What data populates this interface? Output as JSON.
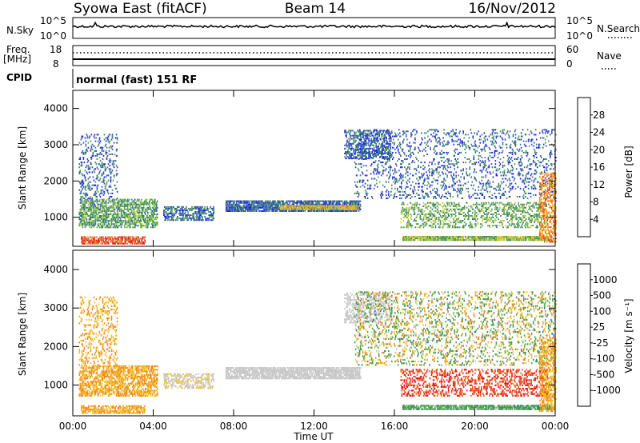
{
  "header": {
    "station": "Syowa East (fitACF)",
    "beam": "Beam 14",
    "date": "16/Nov/2012",
    "mode_text": "normal (fast) 151 RF"
  },
  "noise_panel": {
    "left_label": "N.Sky",
    "right_label": "N.Search",
    "left_ticks": [
      "10^5",
      "10^0"
    ],
    "right_ticks": [
      "10^5",
      "10^0"
    ]
  },
  "freq_panel": {
    "left_label": "Freq.",
    "left_unit": "[MHz]",
    "right_label": "Nave",
    "left_ticks": [
      "18",
      "8"
    ],
    "right_ticks": [
      "60",
      "0"
    ]
  },
  "cpid_label": "CPID",
  "colors": {
    "power": [
      "#1f1ff0",
      "#2a4fb5",
      "#3a7f70",
      "#4aa04a",
      "#a8c84a",
      "#f0c020",
      "#f08a20",
      "#e85a1a",
      "#e01a1a"
    ],
    "velocity": [
      "#e01a1a",
      "#f05a1a",
      "#f08a20",
      "#f0c020",
      "#c8c8c8",
      "#c8c8c8",
      "#4aa04a",
      "#2a7f70",
      "#2a4fb5",
      "#1f2fd0"
    ]
  },
  "chart_data": [
    {
      "type": "heatmap",
      "title": "",
      "ylabel": "Slant Range [km]",
      "xlabel": "",
      "ylim": [
        200,
        4500
      ],
      "xlim": [
        0,
        24
      ],
      "yticks": [
        "1000",
        "2000",
        "3000",
        "4000"
      ],
      "xticks": [
        "00:00",
        "04:00",
        "08:00",
        "12:00",
        "16:00",
        "20:00",
        "00:00"
      ],
      "colorbar_label": "Power [dB]",
      "colorbar_ticks": [
        "4",
        "8",
        "12",
        "16",
        "20",
        "24",
        "28"
      ],
      "colorbar_range": [
        0,
        30
      ],
      "regions": [
        {
          "t0": 0.3,
          "t1": 4.2,
          "r0": 700,
          "r1": 1500,
          "v": 11,
          "d": 0.55
        },
        {
          "t0": 0.4,
          "t1": 3.6,
          "r0": 250,
          "r1": 450,
          "v": 26,
          "d": 0.6
        },
        {
          "t0": 0.3,
          "t1": 2.2,
          "r0": 1500,
          "r1": 3300,
          "v": 6,
          "d": 0.18
        },
        {
          "t0": 4.5,
          "t1": 7.0,
          "r0": 900,
          "r1": 1300,
          "v": 7,
          "d": 0.45
        },
        {
          "t0": 7.6,
          "t1": 14.3,
          "r0": 1150,
          "r1": 1450,
          "v": 6,
          "d": 0.75
        },
        {
          "t0": 10.3,
          "t1": 14.2,
          "r0": 1200,
          "r1": 1300,
          "v": 17,
          "d": 0.8
        },
        {
          "t0": 13.5,
          "t1": 15.8,
          "r0": 2600,
          "r1": 3400,
          "v": 6,
          "d": 0.4
        },
        {
          "t0": 14.0,
          "t1": 24.0,
          "r0": 1500,
          "r1": 3400,
          "v": 6,
          "d": 0.15
        },
        {
          "t0": 16.3,
          "t1": 23.6,
          "r0": 700,
          "r1": 1400,
          "v": 12,
          "d": 0.3
        },
        {
          "t0": 16.4,
          "t1": 23.8,
          "r0": 350,
          "r1": 450,
          "v": 14,
          "d": 0.8
        },
        {
          "t0": 23.2,
          "t1": 24.0,
          "r0": 300,
          "r1": 2200,
          "v": 22,
          "d": 0.45
        }
      ]
    },
    {
      "type": "heatmap",
      "title": "",
      "ylabel": "Slant Range [km]",
      "xlabel": "Time UT",
      "ylim": [
        200,
        4500
      ],
      "xlim": [
        0,
        24
      ],
      "yticks": [
        "1000",
        "2000",
        "3000",
        "4000"
      ],
      "xticks": [
        "00:00",
        "04:00",
        "08:00",
        "12:00",
        "16:00",
        "20:00",
        "00:00"
      ],
      "colorbar_label": "Velocity [m s⁻¹]",
      "colorbar_ticks": [
        "1000",
        "500",
        "100",
        "25",
        "-25",
        "-100",
        "-500",
        "-1000"
      ],
      "colorbar_range": [
        -1000,
        1000
      ],
      "regions": [
        {
          "t0": 0.3,
          "t1": 4.2,
          "r0": 700,
          "r1": 1500,
          "v": 2,
          "d": 0.55
        },
        {
          "t0": 0.4,
          "t1": 3.6,
          "r0": 250,
          "r1": 450,
          "v": 2,
          "d": 0.6
        },
        {
          "t0": 0.3,
          "t1": 2.2,
          "r0": 1500,
          "r1": 3300,
          "v": 2,
          "d": 0.2
        },
        {
          "t0": 4.5,
          "t1": 7.0,
          "r0": 900,
          "r1": 1300,
          "v": 3,
          "d": 0.45
        },
        {
          "t0": 7.6,
          "t1": 14.3,
          "r0": 1150,
          "r1": 1450,
          "v": 4,
          "d": 0.75
        },
        {
          "t0": 13.5,
          "t1": 15.8,
          "r0": 2600,
          "r1": 3400,
          "v": 4,
          "d": 0.4
        },
        {
          "t0": 14.0,
          "t1": 24.0,
          "r0": 1500,
          "r1": 3400,
          "v": 7,
          "d": 0.12
        },
        {
          "t0": 14.0,
          "t1": 24.0,
          "r0": 1500,
          "r1": 3400,
          "v": 2,
          "d": 0.08
        },
        {
          "t0": 16.3,
          "t1": 23.6,
          "r0": 700,
          "r1": 1400,
          "v": 1,
          "d": 0.3
        },
        {
          "t0": 16.4,
          "t1": 23.8,
          "r0": 350,
          "r1": 450,
          "v": 7,
          "d": 0.8
        },
        {
          "t0": 23.2,
          "t1": 24.0,
          "r0": 300,
          "r1": 2200,
          "v": 2,
          "d": 0.45
        }
      ]
    }
  ]
}
